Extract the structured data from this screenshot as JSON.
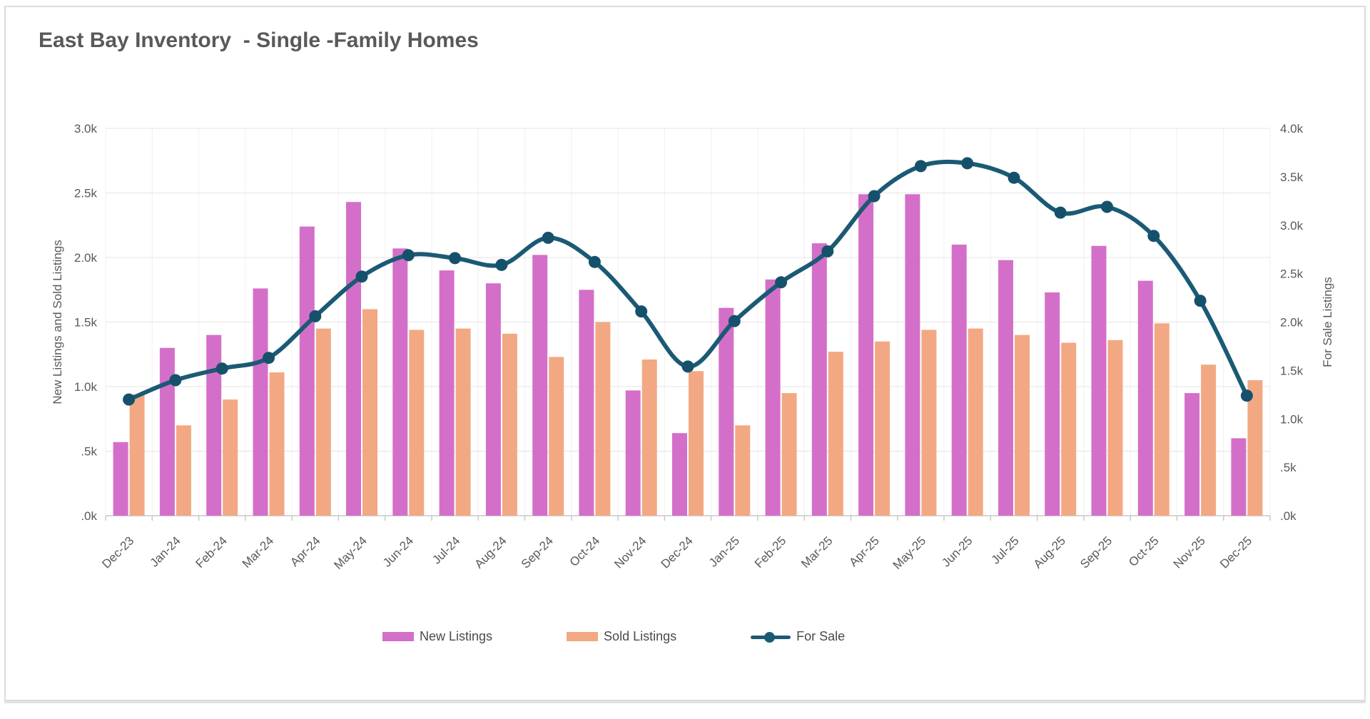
{
  "card": {
    "title": "East Bay Inventory  - Single -Family Homes"
  },
  "chart_data": {
    "type": "bar",
    "subtype": "combo-bar-line-dual-axis",
    "title": "East Bay Inventory  - Single -Family Homes",
    "categories": [
      "Dec-23",
      "Jan-24",
      "Feb-24",
      "Mar-24",
      "Apr-24",
      "May-24",
      "Jun-24",
      "Jul-24",
      "Aug-24",
      "Sep-24",
      "Oct-24",
      "Nov-24",
      "Dec-24",
      "Jan-25",
      "Feb-25",
      "Mar-25",
      "Apr-25",
      "May-25",
      "Jun-25",
      "Jul-25",
      "Aug-25",
      "Sep-25",
      "Oct-25",
      "Nov-25",
      "Dec-25"
    ],
    "series": [
      {
        "name": "New Listings",
        "type": "bar",
        "axis": "left",
        "color": "#d46fc9",
        "values": [
          570,
          1300,
          1400,
          1760,
          2240,
          2430,
          2070,
          1900,
          1800,
          2020,
          1750,
          970,
          640,
          1610,
          1830,
          2110,
          2490,
          2490,
          2100,
          1980,
          1730,
          2090,
          1820,
          950,
          600
        ]
      },
      {
        "name": "Sold Listings",
        "type": "bar",
        "axis": "left",
        "color": "#f2a983",
        "values": [
          940,
          700,
          900,
          1110,
          1450,
          1600,
          1440,
          1450,
          1410,
          1230,
          1500,
          1210,
          1120,
          700,
          950,
          1270,
          1350,
          1440,
          1450,
          1400,
          1340,
          1360,
          1490,
          1170,
          1050
        ]
      },
      {
        "name": "For Sale",
        "type": "line",
        "axis": "right",
        "color": "#1b5a74",
        "values": [
          1200,
          1400,
          1520,
          1630,
          2060,
          2470,
          2690,
          2660,
          2590,
          2870,
          2620,
          2110,
          1540,
          2010,
          2410,
          2730,
          3300,
          3610,
          3640,
          3490,
          3130,
          3190,
          2890,
          2220,
          1240
        ]
      }
    ],
    "left_axis": {
      "label": "New Listings and Sold Listings",
      "min": 0,
      "max": 3000,
      "ticks": [
        "3.0k",
        "2.5k",
        "2.0k",
        "1.5k",
        "1.0k",
        ".5k",
        ".0k"
      ]
    },
    "right_axis": {
      "label": "For Sale Listings",
      "min": 0,
      "max": 4000,
      "ticks": [
        "4.0k",
        "3.5k",
        "3.0k",
        "2.5k",
        "2.0k",
        "1.5k",
        "1.0k",
        ".5k",
        ".0k"
      ]
    },
    "grid": "horizontal-and-vertical",
    "legend_position": "bottom"
  },
  "legend": {
    "items": [
      {
        "label": "New Listings"
      },
      {
        "label": "Sold Listings"
      },
      {
        "label": "For Sale"
      }
    ]
  }
}
